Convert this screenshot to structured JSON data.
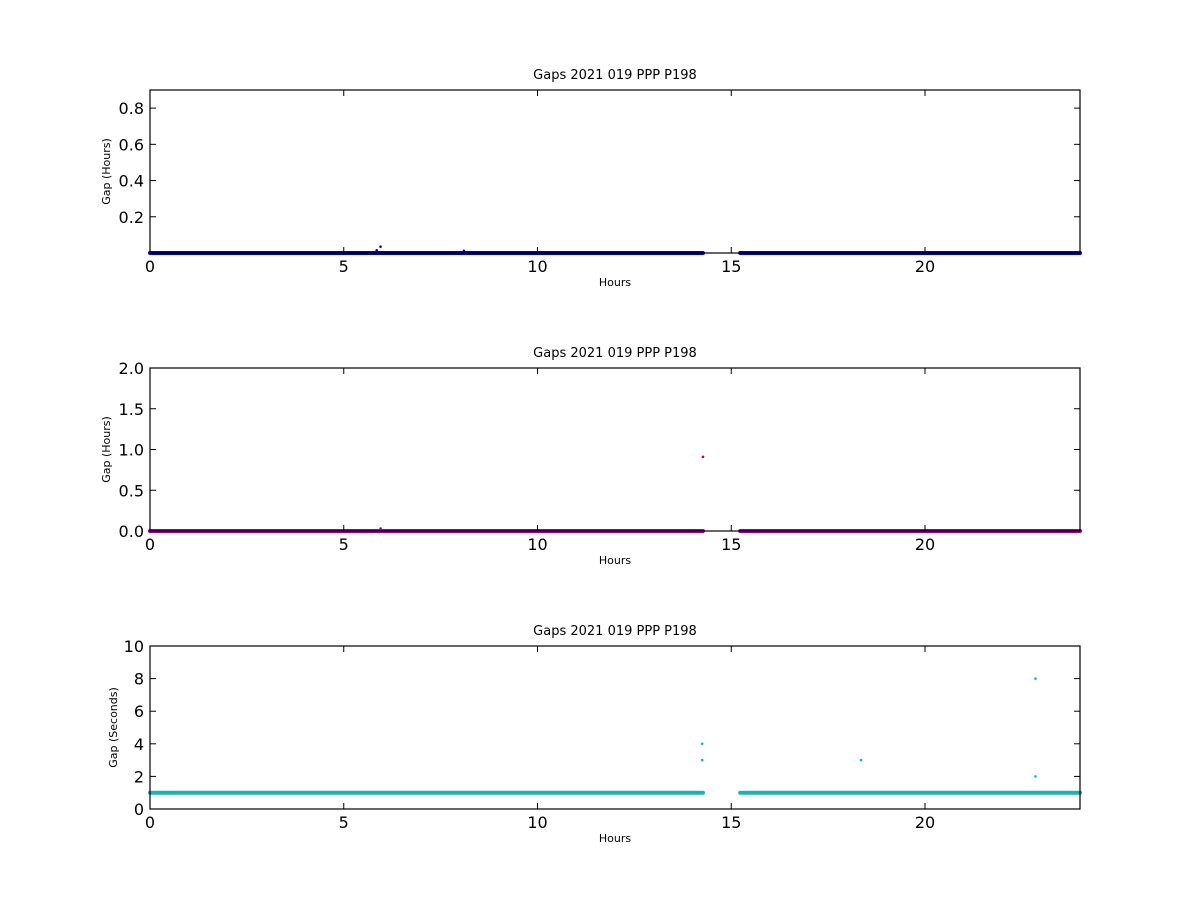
{
  "chart_data": [
    {
      "type": "scatter",
      "title": "Gaps 2021 019 PPP  P198",
      "xlabel": "Hours",
      "ylabel": "Gap (Hours)",
      "xlim": [
        0,
        24
      ],
      "ylim": [
        0,
        0.9
      ],
      "xticks": [
        0,
        5,
        10,
        15,
        20
      ],
      "xtick_labels": [
        "0",
        "5",
        "10",
        "15",
        "20"
      ],
      "yticks": [
        0.2,
        0.4,
        0.6,
        0.8
      ],
      "ytick_labels": [
        "0.2",
        "0.4",
        "0.6",
        "0.8"
      ],
      "grid": false,
      "color": "#0000cc",
      "series": [
        {
          "baseline_segments": [
            {
              "x_start": 0,
              "x_end": 14.27,
              "y": 0.0
            },
            {
              "x_start": 15.23,
              "x_end": 24,
              "y": 0.0
            }
          ],
          "points": [
            {
              "x": 5.85,
              "y": 0.015
            },
            {
              "x": 5.95,
              "y": 0.035
            },
            {
              "x": 8.1,
              "y": 0.012
            }
          ]
        }
      ]
    },
    {
      "type": "scatter",
      "title": "Gaps 2021 019 PPP  P198",
      "xlabel": "Hours",
      "ylabel": "Gap (Hours)",
      "xlim": [
        0,
        24
      ],
      "ylim": [
        0,
        2.0
      ],
      "xticks": [
        0,
        5,
        10,
        15,
        20
      ],
      "xtick_labels": [
        "0",
        "5",
        "10",
        "15",
        "20"
      ],
      "yticks": [
        0.0,
        0.5,
        1.0,
        1.5,
        2.0
      ],
      "ytick_labels": [
        "0.0",
        "0.5",
        "1.0",
        "1.5",
        "2.0"
      ],
      "grid": false,
      "color": "#990099",
      "series": [
        {
          "baseline_segments": [
            {
              "x_start": 0,
              "x_end": 14.27,
              "y": 0.0
            },
            {
              "x_start": 15.23,
              "x_end": 24,
              "y": 0.0
            }
          ],
          "points": [
            {
              "x": 5.95,
              "y": 0.03
            },
            {
              "x": 14.27,
              "y": 0.91
            }
          ]
        }
      ]
    },
    {
      "type": "scatter",
      "title": "Gaps 2021 019 PPP  P198",
      "xlabel": "Hours",
      "ylabel": "Gap (Seconds)",
      "xlim": [
        0,
        24
      ],
      "ylim": [
        0,
        10
      ],
      "xticks": [
        0,
        5,
        10,
        15,
        20
      ],
      "xtick_labels": [
        "0",
        "5",
        "10",
        "15",
        "20"
      ],
      "yticks": [
        0,
        2,
        4,
        6,
        8,
        10
      ],
      "ytick_labels": [
        "0",
        "2",
        "4",
        "6",
        "8",
        "10"
      ],
      "grid": false,
      "color": "#1ab2b2",
      "series": [
        {
          "baseline_segments": [
            {
              "x_start": 0,
              "x_end": 14.27,
              "y": 1.0
            },
            {
              "x_start": 15.23,
              "x_end": 24,
              "y": 1.0
            }
          ],
          "points": [
            {
              "x": 14.25,
              "y": 4.0
            },
            {
              "x": 14.25,
              "y": 3.0
            },
            {
              "x": 18.35,
              "y": 3.0
            },
            {
              "x": 22.85,
              "y": 8.0
            },
            {
              "x": 22.85,
              "y": 2.0
            }
          ]
        }
      ]
    }
  ]
}
